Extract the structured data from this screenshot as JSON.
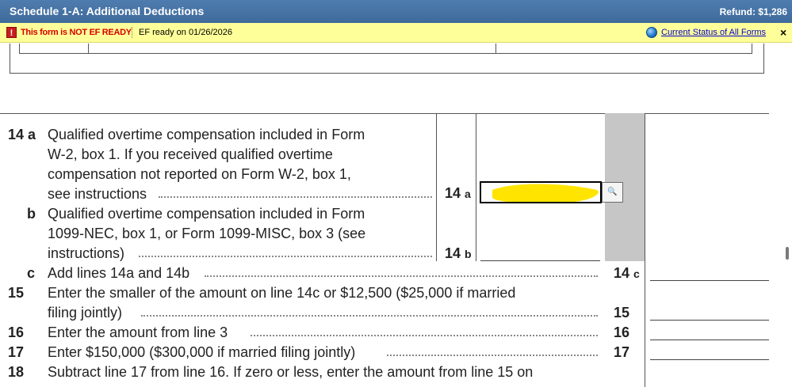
{
  "window": {
    "title": "Schedule 1-A: Additional Deductions",
    "refund": "Refund: $1,286"
  },
  "ef_bar": {
    "warning_icon": "!",
    "not_ready": "This form is NOT EF READY",
    "ready_date": "EF ready on 01/26/2026",
    "status_link": "Current Status of All Forms",
    "close": "×"
  },
  "lines": [
    {
      "num": "14 a",
      "rows": [
        "Qualified overtime compensation included in Form",
        "W-2, box 1. If you received qualified overtime",
        "compensation not reported on Form W-2, box 1,",
        "see instructions"
      ],
      "box": "14",
      "box_sub": "a"
    },
    {
      "num": "b",
      "rows": [
        "Qualified overtime compensation included in Form",
        "1099-NEC, box 1, or Form 1099-MISC, box 3 (see",
        "instructions)"
      ],
      "box": "14",
      "box_sub": "b"
    },
    {
      "num": "c",
      "rows": [
        "Add lines 14a and 14b"
      ],
      "box": "14",
      "box_sub": "c"
    },
    {
      "num": "15",
      "rows": [
        "Enter the smaller of the amount on line 14c or $12,500 ($25,000 if married",
        "filing jointly)"
      ],
      "box": "15"
    },
    {
      "num": "16",
      "rows": [
        "Enter the amount from line 3"
      ],
      "box": "16"
    },
    {
      "num": "17",
      "rows": [
        "Enter $150,000 ($300,000 if married filing jointly)"
      ],
      "box": "17"
    },
    {
      "num": "18",
      "rows": [
        "Subtract line 17 from line 16. If zero or less, enter the amount from line 15 on"
      ]
    }
  ],
  "lookup_icon": "magnifier-icon",
  "highlight_color": "#ffe400"
}
